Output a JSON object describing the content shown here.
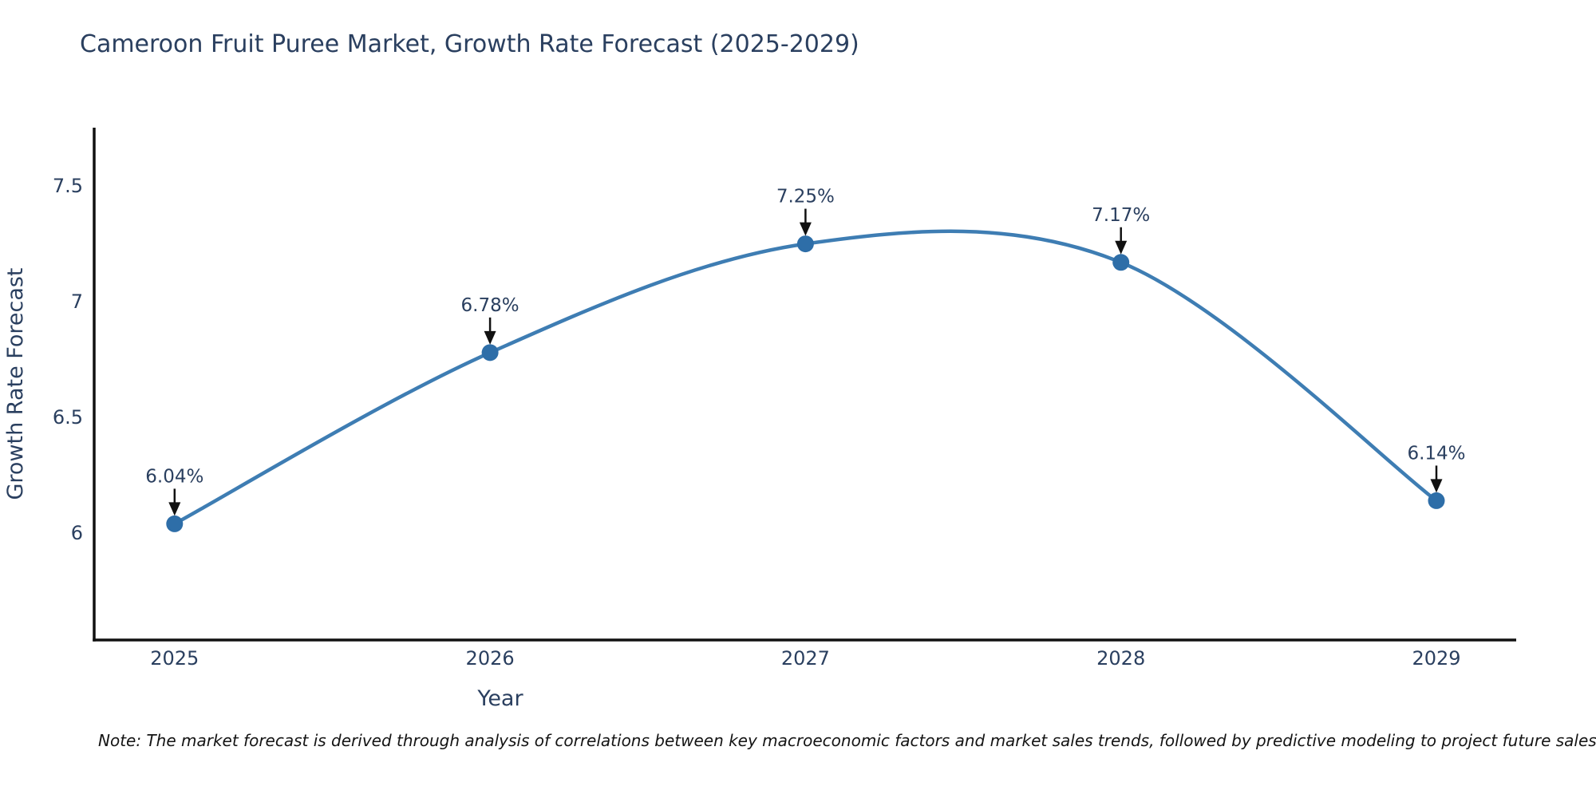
{
  "title": "Cameroon Fruit Puree Market, Growth Rate Forecast (2025-2029)",
  "note": "Note: The market forecast is derived through analysis of correlations between key macroeconomic factors and market sales trends, followed by predictive modeling to project future sales",
  "chart_data": {
    "type": "line",
    "title": "Cameroon Fruit Puree Market, Growth Rate Forecast (2025-2029)",
    "xlabel": "Year",
    "ylabel": "Growth Rate Forecast",
    "x": [
      2025,
      2026,
      2027,
      2028,
      2029
    ],
    "values": [
      6.04,
      6.78,
      7.25,
      7.17,
      6.14
    ],
    "point_labels": [
      "6.04%",
      "6.78%",
      "7.25%",
      "7.17%",
      "6.14%"
    ],
    "x_tick_labels": [
      "2025",
      "2026",
      "2027",
      "2028",
      "2029"
    ],
    "y_ticks": [
      6,
      6.5,
      7,
      7.5
    ],
    "y_tick_labels": [
      "6",
      "6.5",
      "7",
      "7.5"
    ],
    "xlim": [
      2024.745,
      2029.253
    ],
    "ylim": [
      5.538,
      7.752
    ],
    "line_shape": "spline",
    "grid": false,
    "legend": false,
    "colors": {
      "line": "#3e7db3",
      "marker": "#2e6ea8",
      "axis": "#111111",
      "text": "#2a3f5f",
      "annotation_arrow": "#111111",
      "background": "#ffffff"
    }
  }
}
